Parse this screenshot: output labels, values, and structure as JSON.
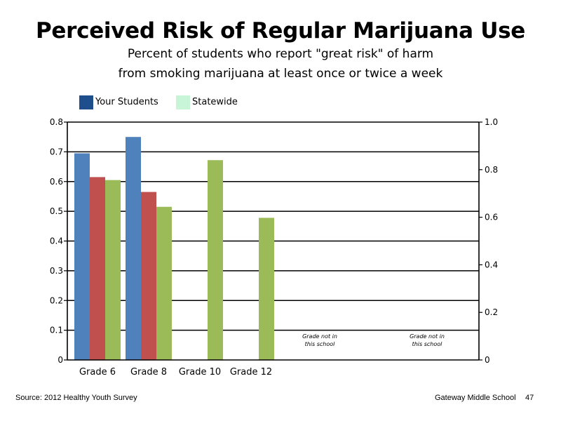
{
  "title": "Perceived Risk of Regular Marijuana Use",
  "subtitle_line1": "Percent of students who report \"great risk\" of harm",
  "subtitle_line2": "from smoking marijuana at least once or twice a week",
  "legend": [
    {
      "label": "Your Students",
      "color": "#1f4e8c"
    },
    {
      "label": "Statewide",
      "color": "#c8f5d7"
    }
  ],
  "colors": {
    "blue": "#4f81bd",
    "red": "#c0504d",
    "green": "#9bbb59"
  },
  "footer": {
    "source": "Source: 2012 Healthy Youth Survey",
    "school": "Gateway Middle  School",
    "page": "47"
  },
  "chart_data": {
    "type": "bar",
    "categories": [
      "Grade 6",
      "Grade 8",
      "Grade 10",
      "Grade 12"
    ],
    "series": [
      {
        "values": [
          0.695,
          0.75,
          null,
          null
        ],
        "color": "#4f81bd"
      },
      {
        "values": [
          0.615,
          0.565,
          null,
          null
        ],
        "color": "#c0504d"
      },
      {
        "values": [
          0.605,
          0.515,
          0.672,
          0.478
        ],
        "color": "#9bbb59"
      }
    ],
    "ylim": [
      0,
      0.8
    ],
    "y_ticks": [
      "0",
      "0.1",
      "0.2",
      "0.3",
      "0.4",
      "0.5",
      "0.6",
      "0.7",
      "0.8"
    ],
    "y2lim": [
      0,
      1.0
    ],
    "y2_ticks": [
      "0",
      "0.2",
      "0.4",
      "0.6",
      "0.8",
      "1.0"
    ],
    "annotations": [
      {
        "line1": "Grade not in",
        "line2": "this school"
      },
      {
        "line1": "Grade not in",
        "line2": "this school"
      }
    ],
    "grid": true
  }
}
